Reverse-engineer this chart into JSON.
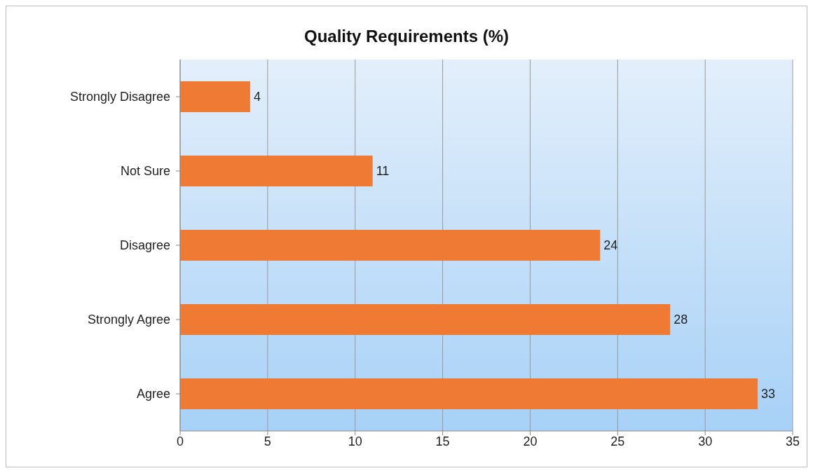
{
  "chart_data": {
    "type": "bar",
    "title": "Quality Requirements (%)",
    "orientation": "horizontal",
    "categories": [
      "Strongly Disagree",
      "Not Sure",
      "Disagree",
      "Strongly Agree",
      "Agree"
    ],
    "values": [
      4,
      11,
      24,
      28,
      33
    ],
    "color": "#ee7a33",
    "xlim": [
      0,
      35
    ],
    "xticks": [
      0,
      5,
      10,
      15,
      20,
      25,
      30,
      35
    ],
    "grid": "x",
    "data_labels": true,
    "legend": false
  }
}
